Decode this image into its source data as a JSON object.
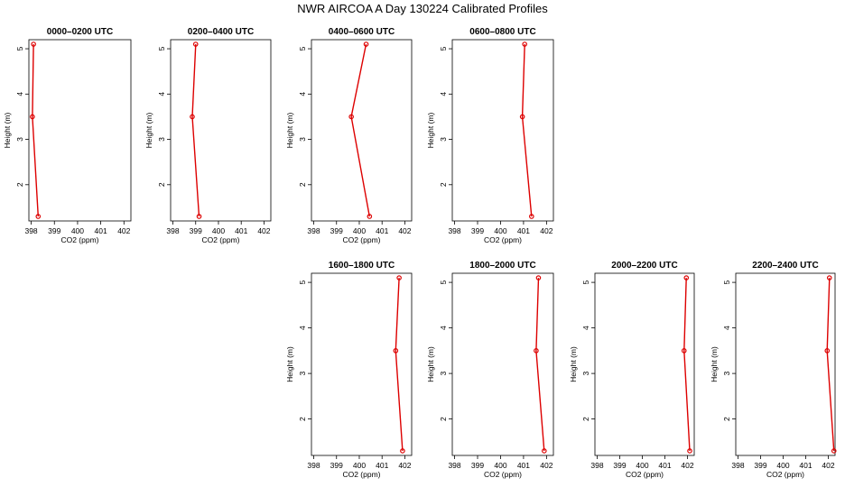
{
  "title": "NWR AIRCOA A  Day 130224  Calibrated Profiles",
  "chart_data": [
    {
      "type": "line",
      "title": "0000–0200 UTC",
      "xlabel": "CO2 (ppm)",
      "ylabel": "Height (m)",
      "xlim": [
        397.9,
        402.3
      ],
      "ylim": [
        1.2,
        5.2
      ],
      "xticks": [
        "398",
        "399",
        "400",
        "401",
        "402"
      ],
      "yticks": [
        "2",
        "3",
        "4",
        "5"
      ],
      "series": [
        {
          "x": [
            398.3,
            398.05,
            398.1
          ],
          "y": [
            1.3,
            3.5,
            5.1
          ]
        }
      ]
    },
    {
      "type": "line",
      "title": "0200–0400 UTC",
      "xlabel": "CO2 (ppm)",
      "ylabel": "Height (m)",
      "xlim": [
        397.9,
        402.3
      ],
      "ylim": [
        1.2,
        5.2
      ],
      "xticks": [
        "398",
        "399",
        "400",
        "401",
        "402"
      ],
      "yticks": [
        "2",
        "3",
        "4",
        "5"
      ],
      "series": [
        {
          "x": [
            399.15,
            398.85,
            399.0
          ],
          "y": [
            1.3,
            3.5,
            5.1
          ]
        }
      ]
    },
    {
      "type": "line",
      "title": "0400–0600 UTC",
      "xlabel": "CO2 (ppm)",
      "ylabel": "Height (m)",
      "xlim": [
        397.9,
        402.3
      ],
      "ylim": [
        1.2,
        5.2
      ],
      "xticks": [
        "398",
        "399",
        "400",
        "401",
        "402"
      ],
      "yticks": [
        "2",
        "3",
        "4",
        "5"
      ],
      "series": [
        {
          "x": [
            400.45,
            399.65,
            400.3
          ],
          "y": [
            1.3,
            3.5,
            5.1
          ]
        }
      ]
    },
    {
      "type": "line",
      "title": "0600–0800 UTC",
      "xlabel": "CO2 (ppm)",
      "ylabel": "Height (m)",
      "xlim": [
        397.9,
        402.3
      ],
      "ylim": [
        1.2,
        5.2
      ],
      "xticks": [
        "398",
        "399",
        "400",
        "401",
        "402"
      ],
      "yticks": [
        "2",
        "3",
        "4",
        "5"
      ],
      "series": [
        {
          "x": [
            401.35,
            400.95,
            401.05
          ],
          "y": [
            1.3,
            3.5,
            5.1
          ]
        }
      ]
    },
    {
      "type": "line",
      "title": "1600–1800 UTC",
      "xlabel": "CO2 (ppm)",
      "ylabel": "Height (m)",
      "xlim": [
        397.9,
        402.3
      ],
      "ylim": [
        1.2,
        5.2
      ],
      "xticks": [
        "398",
        "399",
        "400",
        "401",
        "402"
      ],
      "yticks": [
        "2",
        "3",
        "4",
        "5"
      ],
      "series": [
        {
          "x": [
            401.9,
            401.6,
            401.75
          ],
          "y": [
            1.3,
            3.5,
            5.1
          ]
        }
      ]
    },
    {
      "type": "line",
      "title": "1800–2000 UTC",
      "xlabel": "CO2 (ppm)",
      "ylabel": "Height (m)",
      "xlim": [
        397.9,
        402.3
      ],
      "ylim": [
        1.2,
        5.2
      ],
      "xticks": [
        "398",
        "399",
        "400",
        "401",
        "402"
      ],
      "yticks": [
        "2",
        "3",
        "4",
        "5"
      ],
      "series": [
        {
          "x": [
            401.9,
            401.55,
            401.65
          ],
          "y": [
            1.3,
            3.5,
            5.1
          ]
        }
      ]
    },
    {
      "type": "line",
      "title": "2000–2200 UTC",
      "xlabel": "CO2 (ppm)",
      "ylabel": "Height (m)",
      "xlim": [
        397.9,
        402.3
      ],
      "ylim": [
        1.2,
        5.2
      ],
      "xticks": [
        "398",
        "399",
        "400",
        "401",
        "402"
      ],
      "yticks": [
        "2",
        "3",
        "4",
        "5"
      ],
      "series": [
        {
          "x": [
            402.1,
            401.85,
            401.95
          ],
          "y": [
            1.3,
            3.5,
            5.1
          ]
        }
      ]
    },
    {
      "type": "line",
      "title": "2200–2400 UTC",
      "xlabel": "CO2 (ppm)",
      "ylabel": "Height (m)",
      "xlim": [
        397.9,
        402.3
      ],
      "ylim": [
        1.2,
        5.2
      ],
      "xticks": [
        "398",
        "399",
        "400",
        "401",
        "402"
      ],
      "yticks": [
        "2",
        "3",
        "4",
        "5"
      ],
      "series": [
        {
          "x": [
            402.25,
            401.95,
            402.05
          ],
          "y": [
            1.3,
            3.5,
            5.1
          ]
        }
      ]
    }
  ],
  "colors": {
    "line": "#dd0000",
    "marker": "#dd0000",
    "axis": "#000000"
  }
}
